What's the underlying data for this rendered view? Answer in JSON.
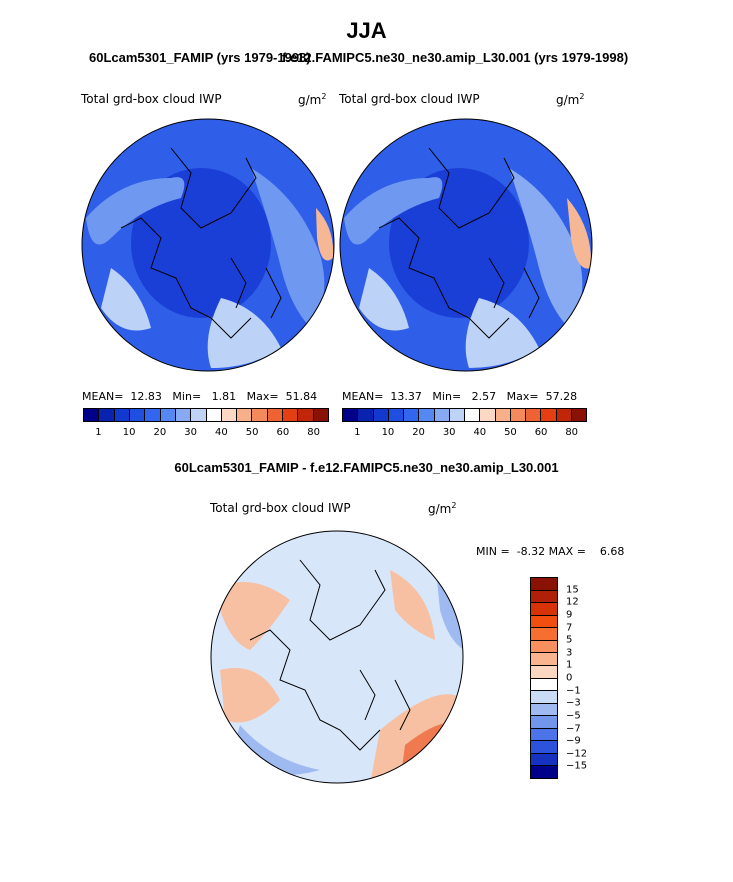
{
  "figure": {
    "title": "JJA",
    "panel1_title": "60Lcam5301_FAMIP (yrs 1979-1998)",
    "panel2_title": "f.e12.FAMIPC5.ne30_ne30.amip_L30.001 (yrs 1979-1998)",
    "diff_title": "60Lcam5301_FAMIP - f.e12.FAMIPC5.ne30_ne30.amip_L30.001"
  },
  "panels": [
    {
      "variable": "Total grd-box cloud IWP",
      "units_base": "g/m",
      "units_exp": "2",
      "mean_label": "MEAN=",
      "mean": "12.83",
      "min_label": "Min=",
      "min": "1.81",
      "max_label": "Max=",
      "max": "51.84"
    },
    {
      "variable": "Total grd-box cloud IWP",
      "units_base": "g/m",
      "units_exp": "2",
      "mean_label": "MEAN=",
      "mean": "13.37",
      "min_label": "Min=",
      "min": "2.57",
      "max_label": "Max=",
      "max": "57.28"
    }
  ],
  "diff": {
    "variable": "Total grd-box cloud IWP",
    "units_base": "g/m",
    "units_exp": "2",
    "min_label": "MIN =",
    "min": "-8.32",
    "max_label": "MAX =",
    "max": "6.68"
  },
  "colorbar_main": {
    "colors": [
      "#000088",
      "#0a22b0",
      "#1238d0",
      "#1f4fe0",
      "#3366ee",
      "#5588f0",
      "#88aaf2",
      "#bfd3f6",
      "#ffffff",
      "#fdd8c4",
      "#f8b08a",
      "#f48a5c",
      "#ef6233",
      "#e43e12",
      "#c2260a",
      "#8a1205"
    ],
    "labels": [
      "1",
      "10",
      "20",
      "30",
      "40",
      "50",
      "60",
      "80"
    ]
  },
  "colorbar_diff": {
    "colors": [
      "#8a1205",
      "#b01f08",
      "#d83308",
      "#f24e10",
      "#f66e30",
      "#f89060",
      "#fab490",
      "#fbd6c0",
      "#ffffff",
      "#c8dcf6",
      "#9ebaf0",
      "#7296ec",
      "#4d73e8",
      "#2d52dc",
      "#1632c0",
      "#000088"
    ],
    "labels": [
      "15",
      "12",
      "9",
      "7",
      "5",
      "3",
      "1",
      "0",
      "−1",
      "−3",
      "−5",
      "−7",
      "−9",
      "−12",
      "−15"
    ]
  },
  "maps": {
    "panel_colors": {
      "ocean_deep": "#1a3fd6",
      "ocean_mid": "#2f5ee8",
      "light": "#6f98f0",
      "pale": "#bcd2f6",
      "warm": "#f6b894"
    },
    "diff_colors": {
      "base": "#d8e6fa",
      "cool": "#9ebaf0",
      "warm": "#f7c0a2",
      "hot": "#ef7a50"
    }
  }
}
